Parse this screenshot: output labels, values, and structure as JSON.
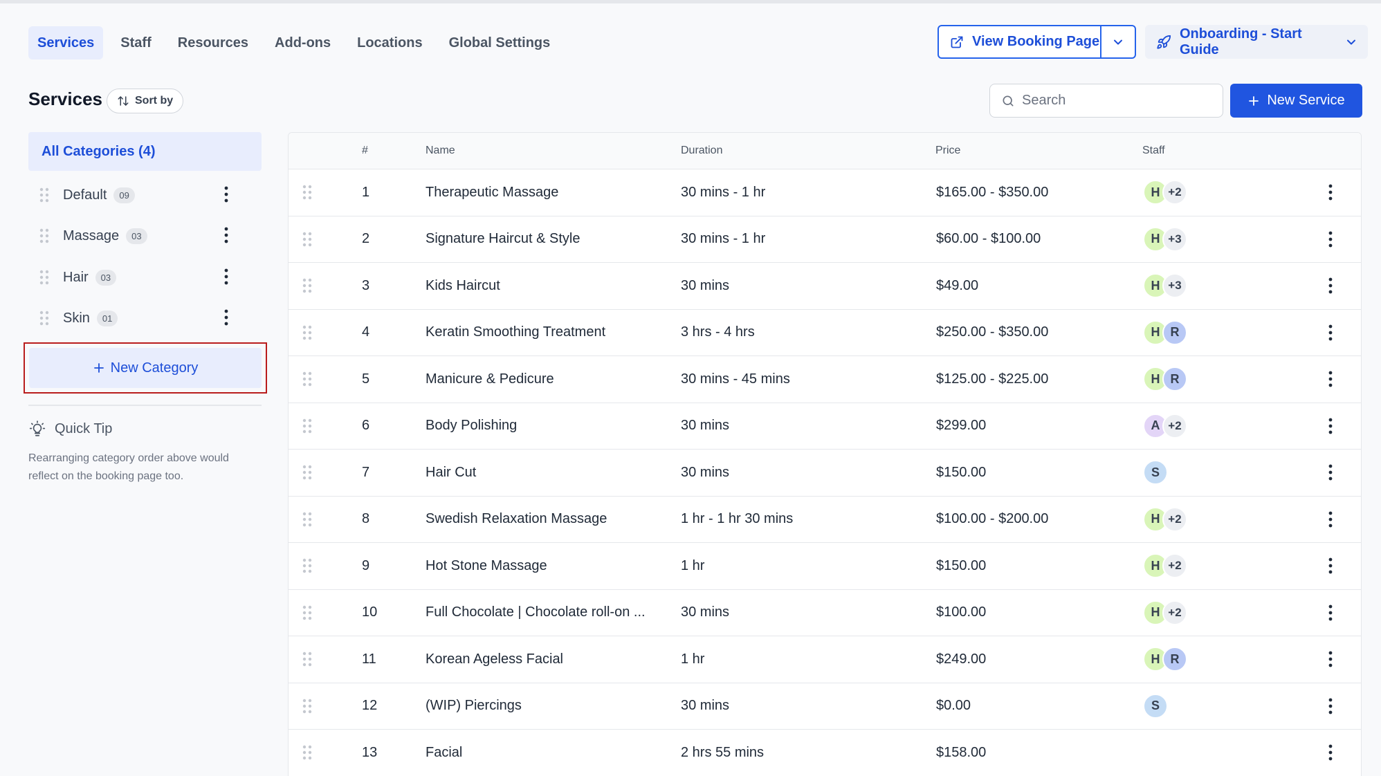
{
  "nav": {
    "tabs": [
      {
        "label": "Services"
      },
      {
        "label": "Staff"
      },
      {
        "label": "Resources"
      },
      {
        "label": "Add-ons"
      },
      {
        "label": "Locations"
      },
      {
        "label": "Global Settings"
      }
    ],
    "active_tab": "Services",
    "view_booking_label": "View Booking Page",
    "onboarding_label": "Onboarding - Start Guide"
  },
  "services": {
    "title": "Services",
    "sort_label": "Sort by",
    "search_placeholder": "Search",
    "new_service_label": "New Service"
  },
  "sidebar": {
    "all_categories_label": "All Categories (4)",
    "categories": [
      {
        "name": "Default",
        "count": "09"
      },
      {
        "name": "Massage",
        "count": "03"
      },
      {
        "name": "Hair",
        "count": "03"
      },
      {
        "name": "Skin",
        "count": "01"
      }
    ],
    "new_category_label": "New Category",
    "tip_title": "Quick Tip",
    "tip_text": "Rearranging category order above would reflect on the booking page too."
  },
  "table": {
    "headers": [
      "#",
      "Name",
      "Duration",
      "Price",
      "Staff"
    ],
    "rows": [
      {
        "num": "1",
        "name": "Therapeutic Massage",
        "duration": "30 mins - 1 hr",
        "price": "$165.00 - $350.00",
        "staff": [
          {
            "initial": "H",
            "color": "#d9f5b8"
          },
          {
            "initial": "+2",
            "more": true
          }
        ]
      },
      {
        "num": "2",
        "name": "Signature Haircut & Style",
        "duration": "30 mins - 1 hr",
        "price": "$60.00 - $100.00",
        "staff": [
          {
            "initial": "H",
            "color": "#d9f5b8"
          },
          {
            "initial": "+3",
            "more": true
          }
        ]
      },
      {
        "num": "3",
        "name": "Kids Haircut",
        "duration": "30 mins",
        "price": "$49.00",
        "staff": [
          {
            "initial": "H",
            "color": "#d9f5b8"
          },
          {
            "initial": "+3",
            "more": true
          }
        ]
      },
      {
        "num": "4",
        "name": "Keratin Smoothing Treatment",
        "duration": "3 hrs - 4 hrs",
        "price": "$250.00 - $350.00",
        "staff": [
          {
            "initial": "H",
            "color": "#d9f5b8"
          },
          {
            "initial": "R",
            "color": "#b8c8f5"
          }
        ]
      },
      {
        "num": "5",
        "name": "Manicure & Pedicure",
        "duration": "30 mins - 45 mins",
        "price": "$125.00 - $225.00",
        "staff": [
          {
            "initial": "H",
            "color": "#d9f5b8"
          },
          {
            "initial": "R",
            "color": "#b8c8f5"
          }
        ]
      },
      {
        "num": "6",
        "name": "Body Polishing",
        "duration": "30 mins",
        "price": "$299.00",
        "staff": [
          {
            "initial": "A",
            "color": "#e3d5f7"
          },
          {
            "initial": "+2",
            "more": true
          }
        ]
      },
      {
        "num": "7",
        "name": "Hair Cut",
        "duration": "30 mins",
        "price": "$150.00",
        "staff": [
          {
            "initial": "S",
            "color": "#c4dcf5"
          }
        ]
      },
      {
        "num": "8",
        "name": "Swedish Relaxation Massage",
        "duration": "1 hr - 1 hr 30 mins",
        "price": "$100.00 - $200.00",
        "staff": [
          {
            "initial": "H",
            "color": "#d9f5b8"
          },
          {
            "initial": "+2",
            "more": true
          }
        ]
      },
      {
        "num": "9",
        "name": "Hot Stone Massage",
        "duration": "1 hr",
        "price": "$150.00",
        "staff": [
          {
            "initial": "H",
            "color": "#d9f5b8"
          },
          {
            "initial": "+2",
            "more": true
          }
        ]
      },
      {
        "num": "10",
        "name": "Full Chocolate | Chocolate roll-on ...",
        "duration": "30 mins",
        "price": "$100.00",
        "staff": [
          {
            "initial": "H",
            "color": "#d9f5b8"
          },
          {
            "initial": "+2",
            "more": true
          }
        ]
      },
      {
        "num": "11",
        "name": "Korean Ageless Facial",
        "duration": "1 hr",
        "price": "$249.00",
        "staff": [
          {
            "initial": "H",
            "color": "#d9f5b8"
          },
          {
            "initial": "R",
            "color": "#b8c8f5"
          }
        ]
      },
      {
        "num": "12",
        "name": "(WIP) Piercings",
        "duration": "30 mins",
        "price": "$0.00",
        "staff": [
          {
            "initial": "S",
            "color": "#c4dcf5"
          }
        ]
      },
      {
        "num": "13",
        "name": "Facial",
        "duration": "2 hrs 55 mins",
        "price": "$158.00",
        "staff": []
      }
    ]
  },
  "colors": {
    "accent": "#2055e0",
    "accent_light": "#e8edfd",
    "highlight_border": "#b91c1c"
  }
}
